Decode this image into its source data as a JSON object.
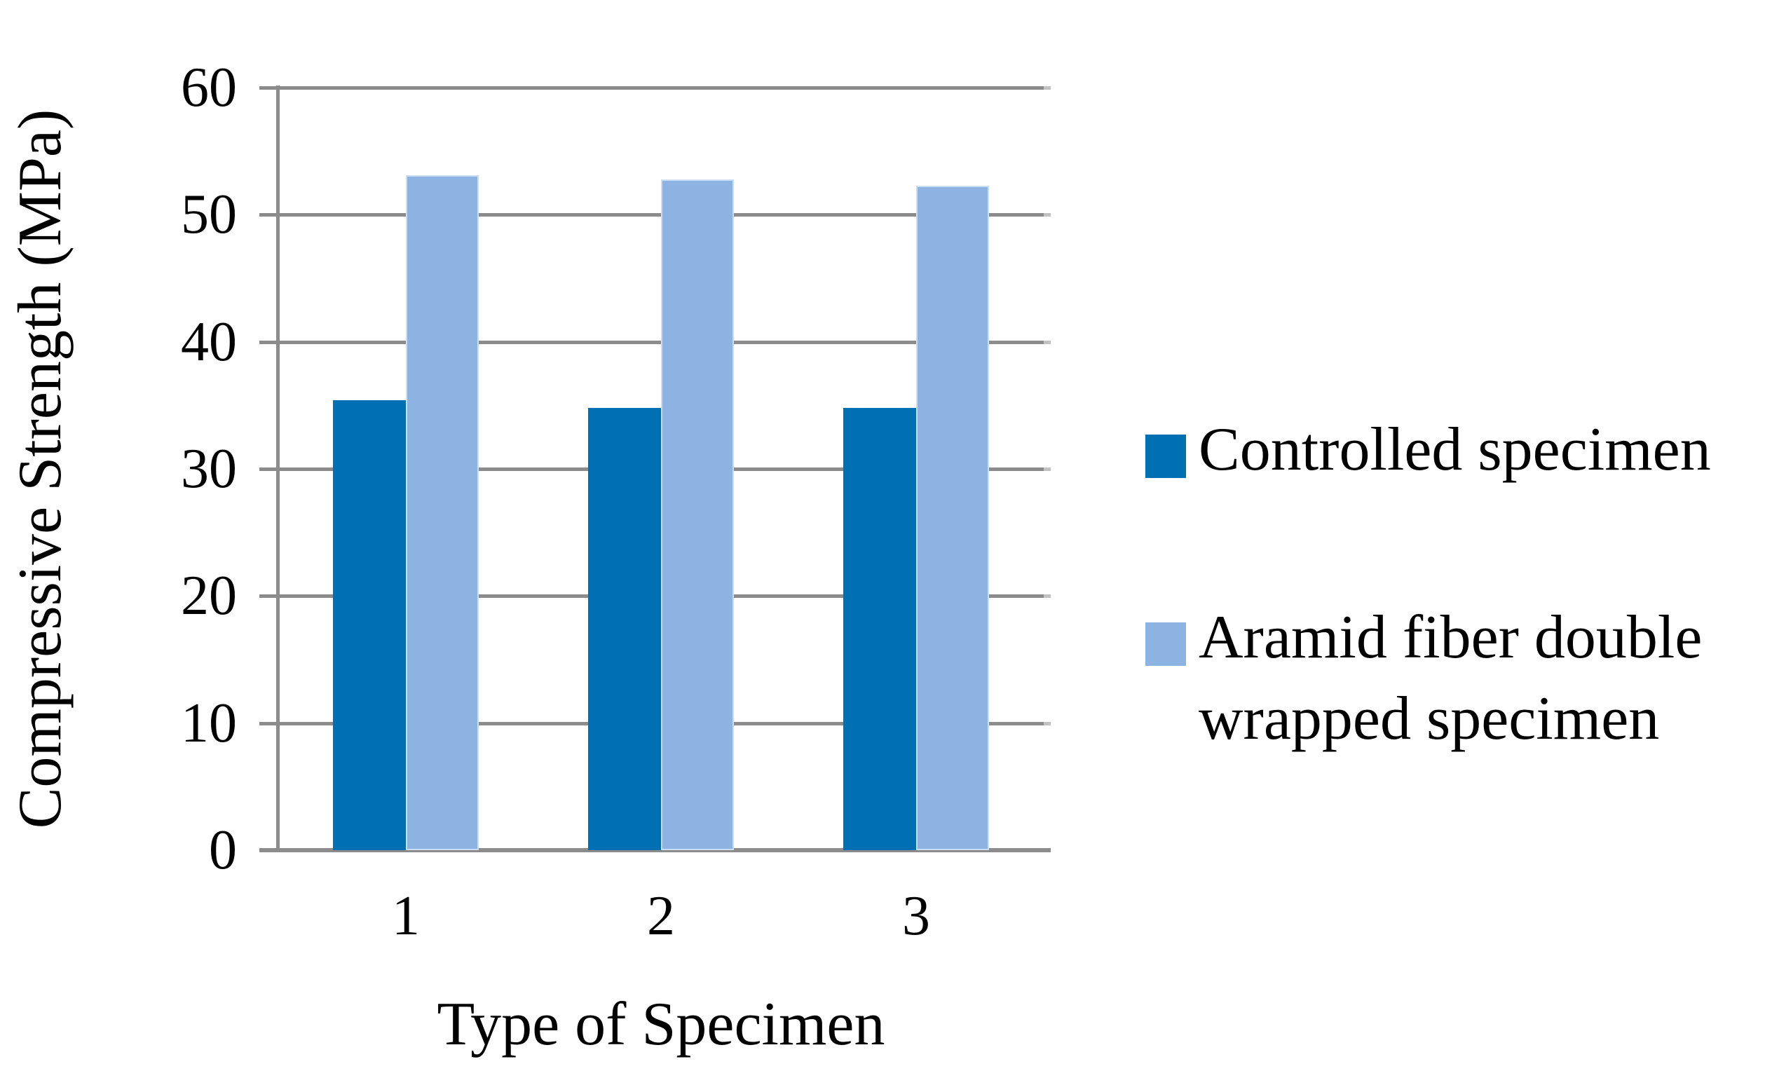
{
  "chart_data": {
    "type": "bar",
    "title": "",
    "xlabel": "Type of Specimen",
    "ylabel": "Compressive Strength (MPa)",
    "categories": [
      "1",
      "2",
      "3"
    ],
    "series": [
      {
        "name": "Controlled specimen",
        "color": "#0070B2",
        "values": [
          35.4,
          34.8,
          34.8
        ]
      },
      {
        "name": "Aramid fiber double wrapped specimen",
        "color": "#8DB3E2",
        "values": [
          53.1,
          52.8,
          52.3
        ]
      }
    ],
    "ylim": [
      0,
      60
    ],
    "ytick_interval": 10,
    "ytick_labels": [
      "0",
      "10",
      "20",
      "30",
      "40",
      "50",
      "60"
    ],
    "grid": true,
    "legend_position": "right",
    "colors": {
      "gridline": "#8C8C8C",
      "gridline_end_stub": "#C2C2C2",
      "axis": "#8C8C8C",
      "text": "#000000",
      "background": "#FFFFFF"
    }
  }
}
